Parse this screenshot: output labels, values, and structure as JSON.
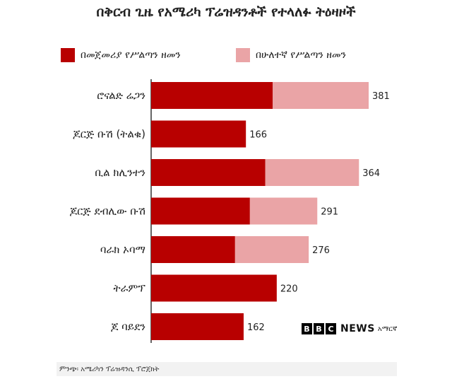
{
  "chart_data": {
    "type": "bar",
    "orientation": "horizontal",
    "stacked": true,
    "title": "በቅርብ ጊዜ የአሜሪካ ፕሬዝዳንቶች የተላለፉ ትዕዛዞች",
    "categories": [
      "ሮናልድ ሬጋን",
      "ጆርጅ ቡሽ (ትልቁ)",
      "ቢል ክሊንተን",
      "ጆርጅ ደብሊው ቡሽ",
      "ባራክ ኦባማ",
      "ትራምፕ",
      "ጆ ባይደን"
    ],
    "series": [
      {
        "name": "በመጀመሪያ የሥልጣን ዘመን",
        "color": "#b80000",
        "values": [
          213,
          166,
          200,
          173,
          147,
          220,
          162
        ]
      },
      {
        "name": "በሁለተኛ የሥልጣን ዘመን",
        "color": "#eaa4a6",
        "values": [
          168,
          0,
          164,
          118,
          129,
          0,
          0
        ]
      }
    ],
    "totals": [
      "381",
      "166",
      "364",
      "291",
      "276",
      "220",
      "162"
    ],
    "xlim": [
      0,
      381
    ],
    "grid": false,
    "legend_position": "top"
  },
  "source": "ምንጭ፡ አሜሪካን ፕሬዝዳንሲ ፕሮጀክት",
  "logo": {
    "letters": [
      "B",
      "B",
      "C"
    ],
    "word": "NEWS",
    "sub": "አማርኛ"
  }
}
